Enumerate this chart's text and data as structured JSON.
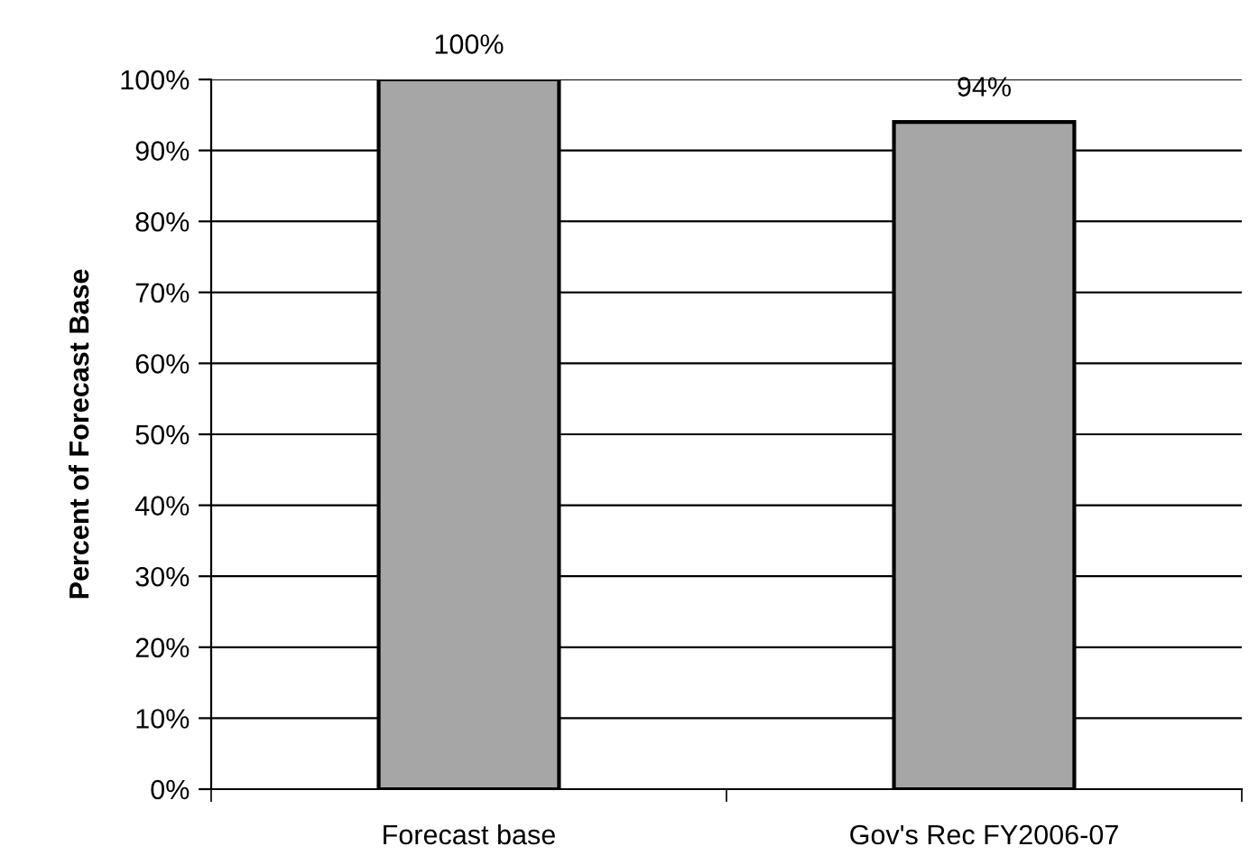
{
  "chart_data": {
    "type": "bar",
    "ylabel": "Percent of Forecast Base",
    "categories": [
      "Forecast base",
      "Gov's Rec FY2006-07"
    ],
    "values": [
      100,
      94
    ],
    "color": "#a6a6a6",
    "value_labels": [
      "100%",
      "94%"
    ],
    "ylim": [
      0,
      100
    ],
    "yticks": [
      {
        "value": 0,
        "label": "0%"
      },
      {
        "value": 10,
        "label": "10%"
      },
      {
        "value": 20,
        "label": "20%"
      },
      {
        "value": 30,
        "label": "30%"
      },
      {
        "value": 40,
        "label": "40%"
      },
      {
        "value": 50,
        "label": "50%"
      },
      {
        "value": 60,
        "label": "60%"
      },
      {
        "value": 70,
        "label": "70%"
      },
      {
        "value": 80,
        "label": "80%"
      },
      {
        "value": 90,
        "label": "90%"
      },
      {
        "value": 100,
        "label": "100%"
      }
    ],
    "grid": "y",
    "legend": false
  }
}
